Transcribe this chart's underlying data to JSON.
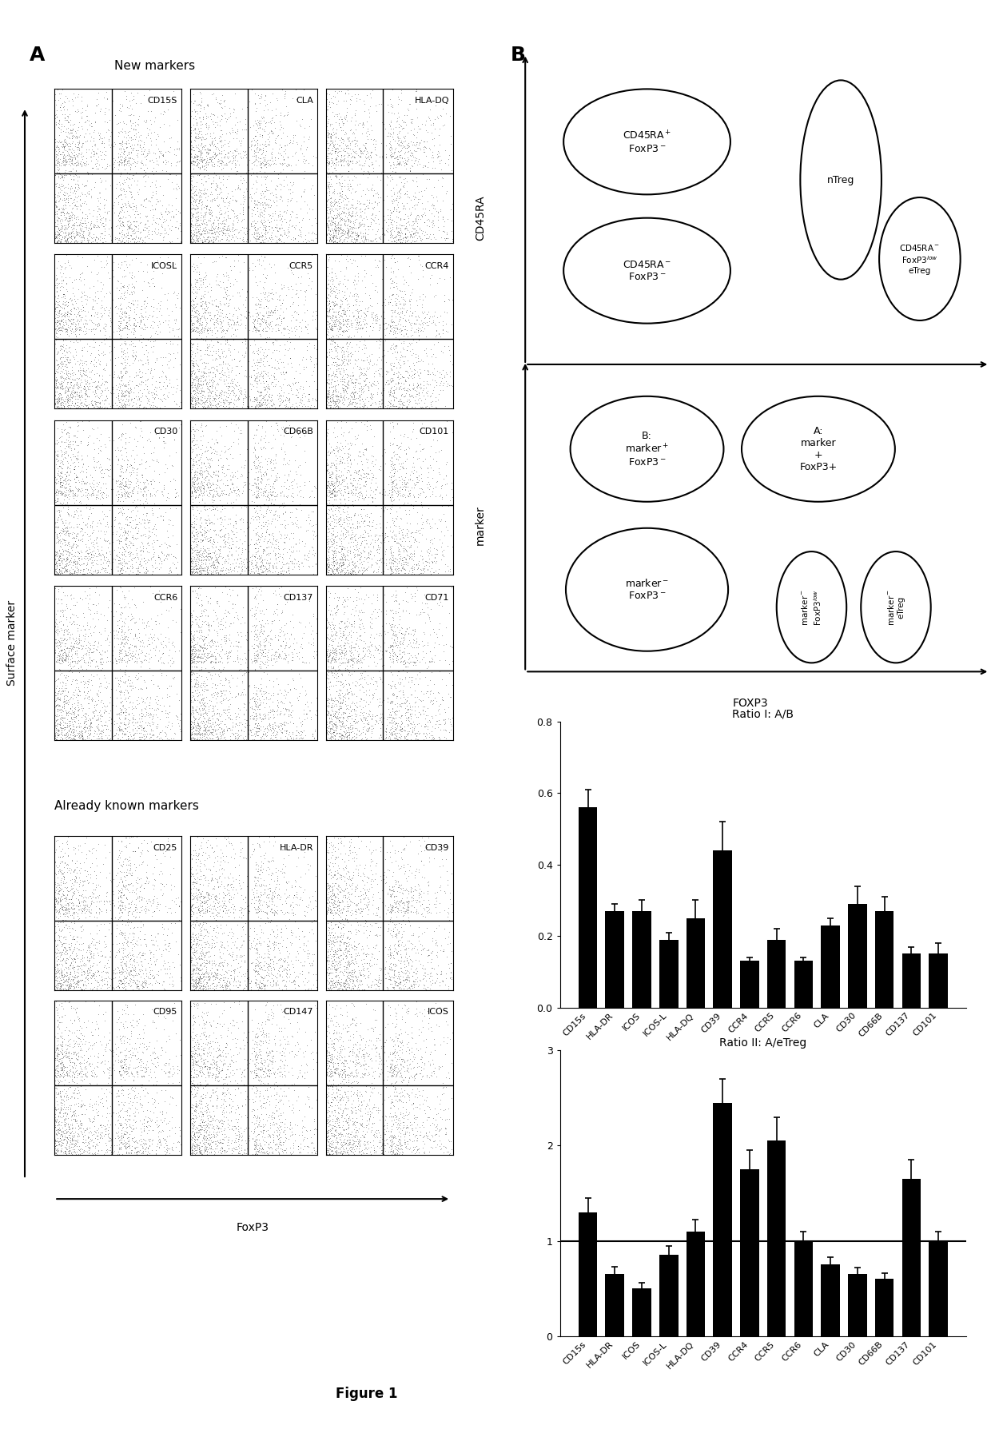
{
  "panel_A_label": "A",
  "panel_B_label": "B",
  "new_markers_title": "New markers",
  "already_known_title": "Already known markers",
  "flow_plots_new": [
    [
      "CD15S",
      "CLA",
      "HLA-DQ"
    ],
    [
      "ICOSL",
      "CCR5",
      "CCR4"
    ],
    [
      "CD30",
      "CD66B",
      "CD101"
    ],
    [
      "CCR6",
      "CD137",
      "CD71"
    ]
  ],
  "flow_plots_known": [
    [
      "CD25",
      "HLA-DR",
      "CD39"
    ],
    [
      "CD95",
      "CD147",
      "ICOS"
    ]
  ],
  "surface_marker_label": "Surface marker",
  "foxp3_label": "FoxP3",
  "bar1_categories": [
    "CD15s",
    "HLA-DR",
    "ICOS",
    "ICOS-L",
    "HLA-DQ",
    "CD39",
    "CCR4",
    "CCR5",
    "CCR6",
    "CLA",
    "CD30",
    "CD66B",
    "CD137",
    "CD101"
  ],
  "bar1_values": [
    0.56,
    0.27,
    0.27,
    0.19,
    0.25,
    0.44,
    0.13,
    0.19,
    0.13,
    0.23,
    0.29,
    0.27,
    0.15,
    0.15
  ],
  "bar1_errors": [
    0.05,
    0.02,
    0.03,
    0.02,
    0.05,
    0.08,
    0.01,
    0.03,
    0.01,
    0.02,
    0.05,
    0.04,
    0.02,
    0.03
  ],
  "bar1_title": "Ratio I: A/B",
  "bar1_ylim": [
    0.0,
    0.8
  ],
  "bar1_yticks": [
    0.0,
    0.2,
    0.4,
    0.6,
    0.8
  ],
  "bar2_categories": [
    "CD15s",
    "HLA-DR",
    "ICOS",
    "ICOS-L",
    "HLA-DQ",
    "CD39",
    "CCR4",
    "CCR5",
    "CCR6",
    "CLA",
    "CD30",
    "CD66B",
    "CD137",
    "CD101"
  ],
  "bar2_values": [
    1.3,
    0.65,
    0.5,
    0.85,
    1.1,
    2.45,
    1.75,
    2.05,
    1.0,
    0.75,
    0.65,
    0.6,
    1.65,
    1.0
  ],
  "bar2_errors": [
    0.15,
    0.08,
    0.06,
    0.1,
    0.12,
    0.25,
    0.2,
    0.25,
    0.1,
    0.08,
    0.07,
    0.06,
    0.2,
    0.1
  ],
  "bar2_title": "Ratio II: A/eTreg",
  "bar2_ylim": [
    0.0,
    3.0
  ],
  "bar2_yticks": [
    0,
    1,
    2,
    3
  ],
  "bar2_hline": 1.0,
  "figure_label": "Figure 1",
  "bar_color": "#000000"
}
